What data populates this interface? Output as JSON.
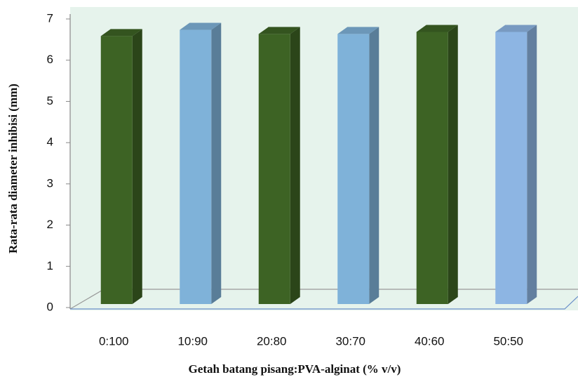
{
  "chart_data": {
    "type": "bar3d",
    "x_label": "Getah batang pisang:PVA-alginat (% v/v)",
    "y_label": "Rata-rata diameter inhibisi (mm)",
    "categories": [
      "0:100",
      "10:90",
      "20:80",
      "30:70",
      "40:60",
      "50:50"
    ],
    "values": [
      6.5,
      6.65,
      6.55,
      6.55,
      6.6,
      6.6
    ],
    "colors": [
      "#3d6324",
      "#7fb2d9",
      "#3d6324",
      "#7fb2d9",
      "#3d6324",
      "#8db5e3"
    ],
    "ylim": [
      0,
      7
    ],
    "yticks": [
      0,
      1,
      2,
      3,
      4,
      5,
      6,
      7
    ]
  }
}
